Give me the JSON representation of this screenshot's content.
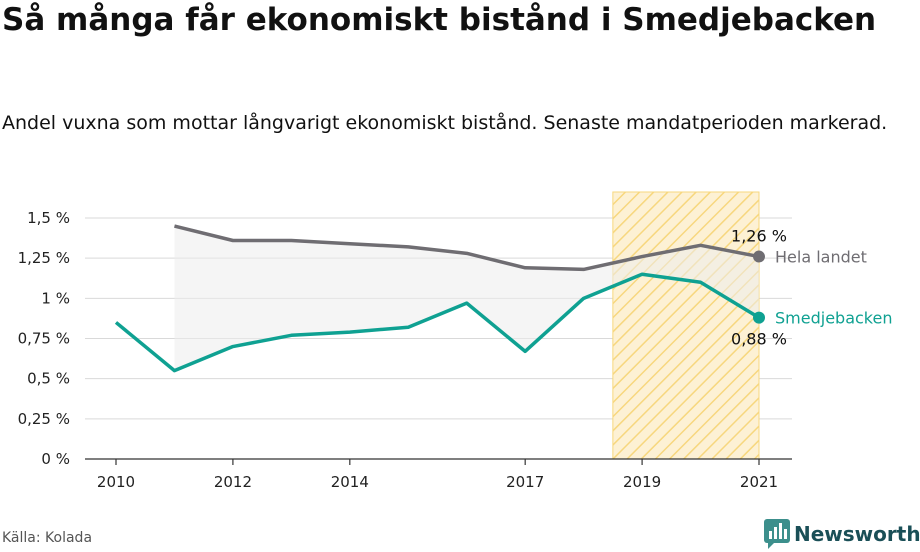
{
  "title": "Så många får ekonomiskt bistånd i Smedjebacken",
  "subtitle": "Andel vuxna som mottar långvarigt ekonomiskt bistånd. Senaste mandatperioden markerad.",
  "source": "Källa: Kolada",
  "brand": {
    "name": "Newsworthy",
    "icon": "newsworthy-logo-icon"
  },
  "colors": {
    "national": "#6f6d72",
    "local": "#0fa192",
    "highlight_fill": "#fdf1d4",
    "highlight_stripe": "#f7d77e",
    "grid": "#d9d9d9"
  },
  "chart_data": {
    "type": "line",
    "x": [
      2010,
      2011,
      2012,
      2013,
      2014,
      2015,
      2016,
      2017,
      2018,
      2019,
      2020,
      2021
    ],
    "x_ticks": [
      2010,
      2012,
      2014,
      2017,
      2019,
      2021
    ],
    "y_ticks": [
      "0 %",
      "0,25 %",
      "0,5 %",
      "0,75 %",
      "1 %",
      "1,25 %",
      "1,5 %"
    ],
    "ylim": [
      0,
      1.5
    ],
    "highlight_range": [
      2018.5,
      2021
    ],
    "series": [
      {
        "name": "Hela landet",
        "values": [
          null,
          1.45,
          1.36,
          1.36,
          1.34,
          1.32,
          1.28,
          1.19,
          1.18,
          1.26,
          1.33,
          1.26
        ],
        "end_value_label": "1,26 %"
      },
      {
        "name": "Smedjebacken",
        "values": [
          0.85,
          0.55,
          0.7,
          0.77,
          0.79,
          0.82,
          0.97,
          0.67,
          1.0,
          1.15,
          1.1,
          0.88
        ],
        "end_value_label": "0,88 %"
      }
    ],
    "shaded_gap_between_series": true,
    "grid": true
  }
}
